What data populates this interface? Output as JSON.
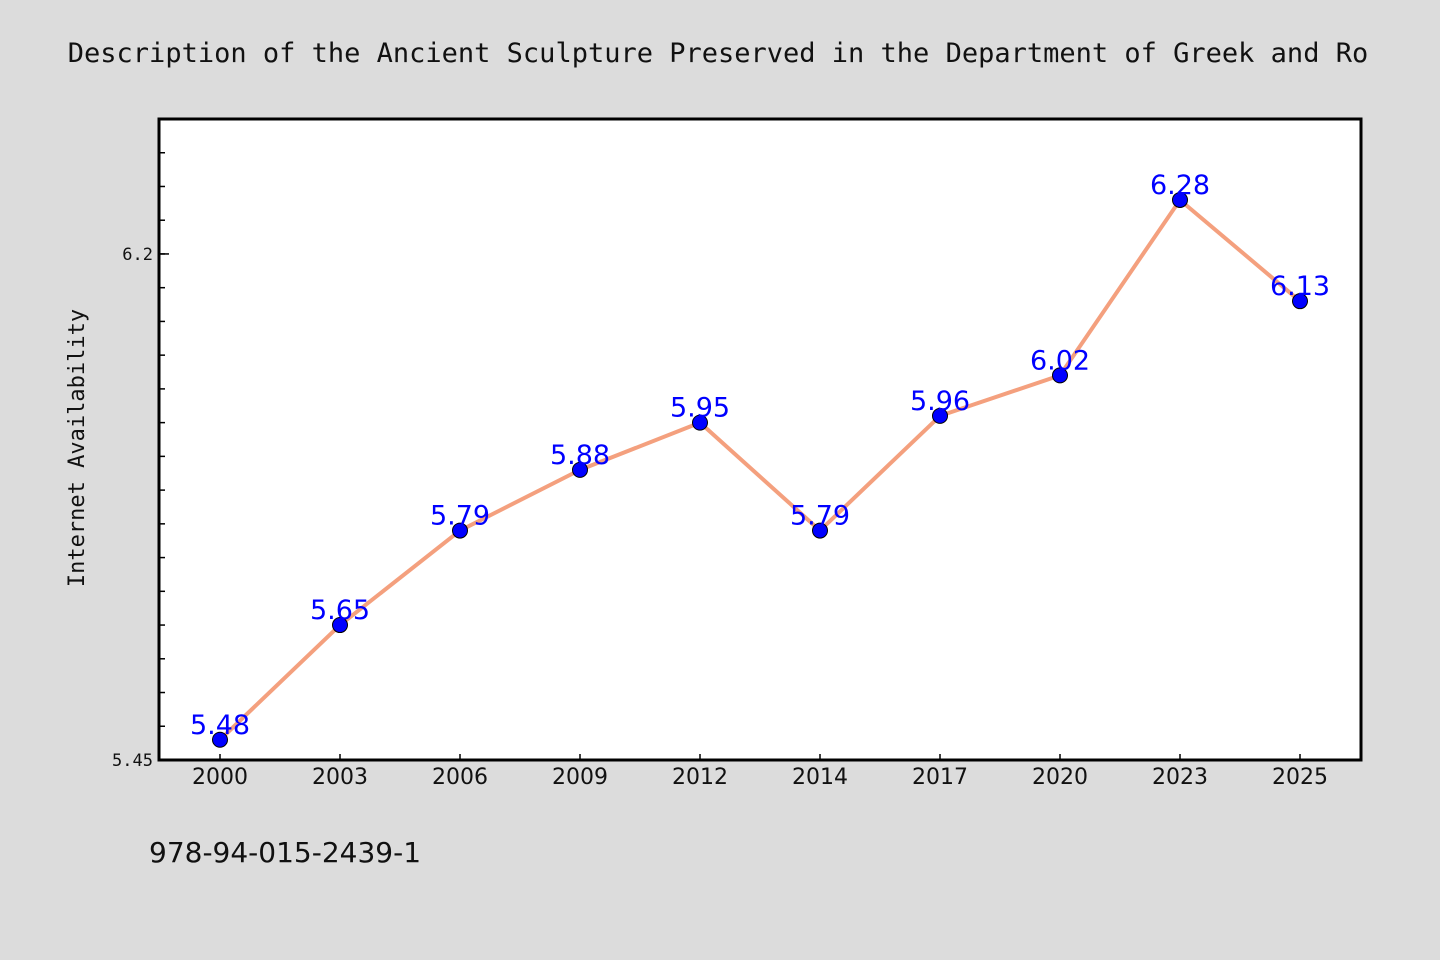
{
  "chart_data": {
    "type": "line",
    "title": "Description of the Ancient Sculpture Preserved in the Department of Greek and Ro",
    "xlabel": "",
    "ylabel": "Internet Availability",
    "categories": [
      "2000",
      "2003",
      "2006",
      "2009",
      "2012",
      "2014",
      "2017",
      "2020",
      "2023",
      "2025"
    ],
    "series": [
      {
        "values": [
          5.48,
          5.65,
          5.79,
          5.88,
          5.95,
          5.79,
          5.96,
          6.02,
          6.28,
          6.13
        ],
        "labels": [
          "5.48",
          "5.65",
          "5.79",
          "5.88",
          "5.95",
          "5.79",
          "5.96",
          "6.02",
          "6.28",
          "6.13"
        ]
      }
    ],
    "ylim": [
      5.45,
      6.4
    ],
    "yticks_labeled": [
      "5.45",
      "6.2"
    ],
    "grid": false,
    "colors": {
      "line": "#f4a07e",
      "marker": "#0000ff",
      "label": "#0000ff",
      "plot_bg": "#ffffff",
      "page_bg": "#dcdcdc"
    }
  },
  "footer": {
    "isbn": "978-94-015-2439-1"
  }
}
